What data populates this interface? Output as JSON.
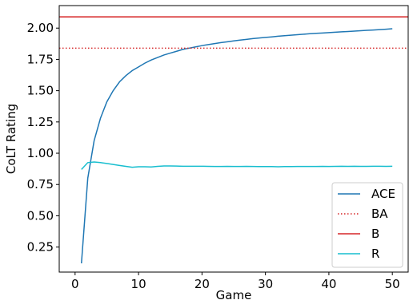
{
  "chart_data": {
    "type": "line",
    "xlabel": "Game",
    "ylabel": "CoLT Rating",
    "xlim": [
      -2.5,
      52.5
    ],
    "ylim": [
      0.05,
      2.18
    ],
    "xticks": [
      0,
      10,
      20,
      30,
      40,
      50
    ],
    "xtick_labels": [
      "0",
      "10",
      "20",
      "30",
      "40",
      "50"
    ],
    "yticks": [
      0.25,
      0.5,
      0.75,
      1.0,
      1.25,
      1.5,
      1.75,
      2.0
    ],
    "ytick_labels": [
      "0.25",
      "0.50",
      "0.75",
      "1.00",
      "1.25",
      "1.50",
      "1.75",
      "2.00"
    ],
    "grid": false,
    "legend_position": "bottom-right",
    "series": [
      {
        "name": "ACE",
        "style": "line",
        "color": "#1f77b4",
        "x": [
          1,
          2,
          3,
          4,
          5,
          6,
          7,
          8,
          9,
          10,
          11,
          12,
          13,
          14,
          15,
          16,
          17,
          18,
          19,
          20,
          21,
          22,
          23,
          24,
          25,
          26,
          27,
          28,
          29,
          30,
          31,
          32,
          33,
          34,
          35,
          36,
          37,
          38,
          39,
          40,
          41,
          42,
          43,
          44,
          45,
          46,
          47,
          48,
          49,
          50
        ],
        "y": [
          0.12,
          0.8,
          1.1,
          1.28,
          1.41,
          1.5,
          1.57,
          1.62,
          1.66,
          1.69,
          1.72,
          1.745,
          1.765,
          1.785,
          1.8,
          1.815,
          1.83,
          1.84,
          1.85,
          1.86,
          1.868,
          1.876,
          1.884,
          1.891,
          1.898,
          1.904,
          1.91,
          1.916,
          1.921,
          1.926,
          1.93,
          1.935,
          1.939,
          1.943,
          1.947,
          1.951,
          1.955,
          1.958,
          1.961,
          1.964,
          1.967,
          1.97,
          1.973,
          1.976,
          1.979,
          1.982,
          1.985,
          1.988,
          1.991,
          1.995
        ]
      },
      {
        "name": "BA",
        "style": "hline-dotted",
        "color": "#d62728",
        "y": 1.84
      },
      {
        "name": "B",
        "style": "hline-solid",
        "color": "#d62728",
        "y": 2.09
      },
      {
        "name": "R",
        "style": "line",
        "color": "#17becf",
        "x": [
          1,
          2,
          3,
          4,
          5,
          6,
          7,
          8,
          9,
          10,
          11,
          12,
          13,
          14,
          15,
          16,
          17,
          18,
          19,
          20,
          21,
          22,
          23,
          24,
          25,
          26,
          27,
          28,
          29,
          30,
          31,
          32,
          33,
          34,
          35,
          36,
          37,
          38,
          39,
          40,
          41,
          42,
          43,
          44,
          45,
          46,
          47,
          48,
          49,
          50
        ],
        "y": [
          0.87,
          0.925,
          0.93,
          0.925,
          0.918,
          0.91,
          0.902,
          0.895,
          0.888,
          0.892,
          0.892,
          0.89,
          0.895,
          0.898,
          0.898,
          0.897,
          0.896,
          0.896,
          0.896,
          0.896,
          0.895,
          0.894,
          0.894,
          0.895,
          0.894,
          0.894,
          0.895,
          0.894,
          0.893,
          0.893,
          0.893,
          0.892,
          0.893,
          0.893,
          0.894,
          0.894,
          0.894,
          0.894,
          0.895,
          0.894,
          0.895,
          0.896,
          0.895,
          0.896,
          0.895,
          0.895,
          0.896,
          0.896,
          0.895,
          0.896
        ]
      }
    ]
  }
}
